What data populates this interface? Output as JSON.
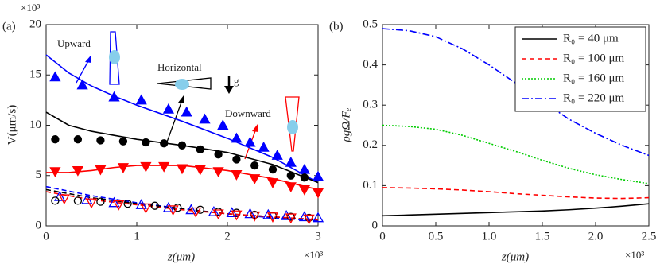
{
  "chart_data": [
    {
      "type": "line",
      "panel_label": "(a)",
      "ylabel": "V(μm/s)",
      "xlabel": "z(μm)",
      "x_multiplier": "×10³",
      "y_multiplier": "×10³",
      "xlim": [
        0,
        3
      ],
      "xticks": [
        0,
        1,
        2,
        3
      ],
      "ylim": [
        0,
        20
      ],
      "yticks": [
        0,
        5,
        10,
        15,
        20
      ],
      "annotations": [
        "Upward",
        "Horizontal",
        "Downward",
        "g"
      ],
      "series": [
        {
          "color": "#0000ff",
          "style": "line",
          "dash": "solid",
          "x": [
            0,
            0.25,
            0.5,
            0.75,
            1,
            1.5,
            2,
            2.5,
            3
          ],
          "values": [
            17,
            15.2,
            13.9,
            12.9,
            12.0,
            10.4,
            8.7,
            6.8,
            4.3
          ]
        },
        {
          "color": "#000000",
          "style": "line",
          "dash": "solid",
          "x": [
            0,
            0.25,
            0.5,
            0.75,
            1,
            1.5,
            2,
            2.5,
            3
          ],
          "values": [
            11.3,
            10.0,
            9.4,
            9.0,
            8.6,
            8.0,
            7.3,
            6.1,
            4.3
          ]
        },
        {
          "color": "#ff0000",
          "style": "line",
          "dash": "solid",
          "x": [
            0,
            0.25,
            0.5,
            0.75,
            1,
            1.5,
            2,
            2.5,
            3
          ],
          "values": [
            5.3,
            5.3,
            5.5,
            5.8,
            6.0,
            6.0,
            5.5,
            4.7,
            3.6
          ]
        },
        {
          "color": "#0000ff",
          "style": "marker",
          "marker": "up",
          "filled": true,
          "x": [
            0.1,
            0.4,
            0.75,
            1.05,
            1.35,
            1.55,
            1.75,
            1.95,
            2.1,
            2.25,
            2.4,
            2.55,
            2.7,
            2.85,
            3.0
          ],
          "values": [
            14.8,
            14.0,
            12.8,
            12.5,
            11.6,
            11.3,
            10.6,
            10.0,
            8.7,
            8.3,
            7.8,
            7.0,
            6.3,
            5.6,
            4.9
          ]
        },
        {
          "color": "#000000",
          "style": "marker",
          "marker": "circle",
          "filled": true,
          "x": [
            0.1,
            0.35,
            0.6,
            0.85,
            1.1,
            1.3,
            1.5,
            1.7,
            1.9,
            2.1,
            2.3,
            2.5,
            2.7,
            2.85
          ],
          "values": [
            8.6,
            8.6,
            8.5,
            8.4,
            8.3,
            8.2,
            8.0,
            7.6,
            7.1,
            6.6,
            6.0,
            5.6,
            5.0,
            4.8
          ]
        },
        {
          "color": "#ff0000",
          "style": "marker",
          "marker": "down",
          "filled": true,
          "x": [
            0.1,
            0.35,
            0.6,
            0.85,
            1.1,
            1.3,
            1.5,
            1.7,
            1.9,
            2.1,
            2.3,
            2.5,
            2.7,
            2.85,
            3.0
          ],
          "values": [
            5.4,
            5.5,
            5.6,
            5.8,
            5.9,
            5.9,
            5.7,
            5.6,
            5.4,
            5.1,
            4.7,
            4.3,
            3.9,
            3.6,
            3.3
          ]
        },
        {
          "color": "#0000ff",
          "style": "line",
          "dash": "dashed",
          "x": [
            0,
            0.5,
            1,
            1.5,
            2,
            2.5,
            3
          ],
          "values": [
            3.9,
            3.0,
            2.3,
            1.7,
            1.2,
            0.8,
            0.5
          ]
        },
        {
          "color": "#000000",
          "style": "line",
          "dash": "dashed",
          "x": [
            0,
            0.5,
            1,
            1.5,
            2,
            2.5,
            3
          ],
          "values": [
            3.6,
            2.8,
            2.2,
            1.7,
            1.2,
            0.9,
            0.6
          ]
        },
        {
          "color": "#ff0000",
          "style": "line",
          "dash": "dashed",
          "x": [
            0,
            0.5,
            1,
            1.5,
            2,
            2.5,
            3
          ],
          "values": [
            3.4,
            2.6,
            2.1,
            1.6,
            1.2,
            0.9,
            0.6
          ]
        },
        {
          "color": "#0000ff",
          "style": "marker",
          "marker": "up",
          "filled": false,
          "x": [
            0.15,
            0.45,
            0.75,
            1.05,
            1.35,
            1.6,
            1.85,
            2.05,
            2.25,
            2.45,
            2.65,
            2.85,
            3.0
          ],
          "values": [
            2.9,
            2.6,
            2.3,
            2.1,
            1.8,
            1.6,
            1.4,
            1.3,
            1.2,
            1.1,
            1.0,
            0.9,
            0.8
          ]
        },
        {
          "color": "#000000",
          "style": "marker",
          "marker": "circle",
          "filled": false,
          "x": [
            0.1,
            0.35,
            0.6,
            0.9,
            1.2,
            1.45,
            1.7,
            1.9,
            2.1,
            2.3,
            2.5,
            2.7,
            2.9
          ],
          "values": [
            2.5,
            2.5,
            2.4,
            2.2,
            2.0,
            1.8,
            1.6,
            1.4,
            1.3,
            1.1,
            1.0,
            0.9,
            0.8
          ]
        },
        {
          "color": "#ff0000",
          "style": "marker",
          "marker": "down",
          "filled": false,
          "x": [
            0.2,
            0.5,
            0.8,
            1.1,
            1.4,
            1.65,
            1.9,
            2.1,
            2.3,
            2.5,
            2.7,
            2.9
          ],
          "values": [
            2.7,
            2.3,
            2.1,
            1.8,
            1.6,
            1.4,
            1.2,
            1.1,
            1.0,
            0.9,
            0.8,
            0.7
          ]
        }
      ]
    },
    {
      "type": "line",
      "panel_label": "(b)",
      "ylabel": "ρgΩ/Fₑ",
      "xlabel": "z(μm)",
      "x_multiplier": "×10³",
      "xlim": [
        0,
        2.5
      ],
      "xticks": [
        0,
        0.5,
        {
          "value": 1,
          "label": "1.0"
        },
        1.5,
        {
          "value": 2,
          "label": "2.0"
        },
        2.5
      ],
      "ylim": [
        0,
        0.5
      ],
      "yticks": [
        0,
        0.1,
        0.2,
        0.3,
        0.4,
        0.5
      ],
      "legend": "upper-right",
      "x": [
        0,
        0.25,
        0.5,
        0.75,
        1,
        1.25,
        1.5,
        1.75,
        2,
        2.25,
        2.5
      ],
      "series": [
        {
          "name": "R₀ = 40 μm",
          "color": "#000000",
          "dash": "solid",
          "values": [
            0.025,
            0.027,
            0.029,
            0.031,
            0.033,
            0.035,
            0.037,
            0.04,
            0.044,
            0.049,
            0.055
          ]
        },
        {
          "name": "R₀ = 100 μm",
          "color": "#ff0000",
          "dash": "dashed",
          "values": [
            0.095,
            0.094,
            0.092,
            0.089,
            0.085,
            0.08,
            0.076,
            0.072,
            0.069,
            0.068,
            0.07
          ]
        },
        {
          "name": "R₀ = 160 μm",
          "color": "#00cc00",
          "dash": "dotted",
          "values": [
            0.25,
            0.247,
            0.24,
            0.225,
            0.205,
            0.185,
            0.163,
            0.143,
            0.127,
            0.115,
            0.105
          ]
        },
        {
          "name": "R₀ = 220 μm",
          "color": "#0000ff",
          "dash": "dashdot",
          "values": [
            0.49,
            0.485,
            0.47,
            0.44,
            0.4,
            0.355,
            0.31,
            0.265,
            0.23,
            0.2,
            0.175
          ]
        }
      ]
    }
  ]
}
